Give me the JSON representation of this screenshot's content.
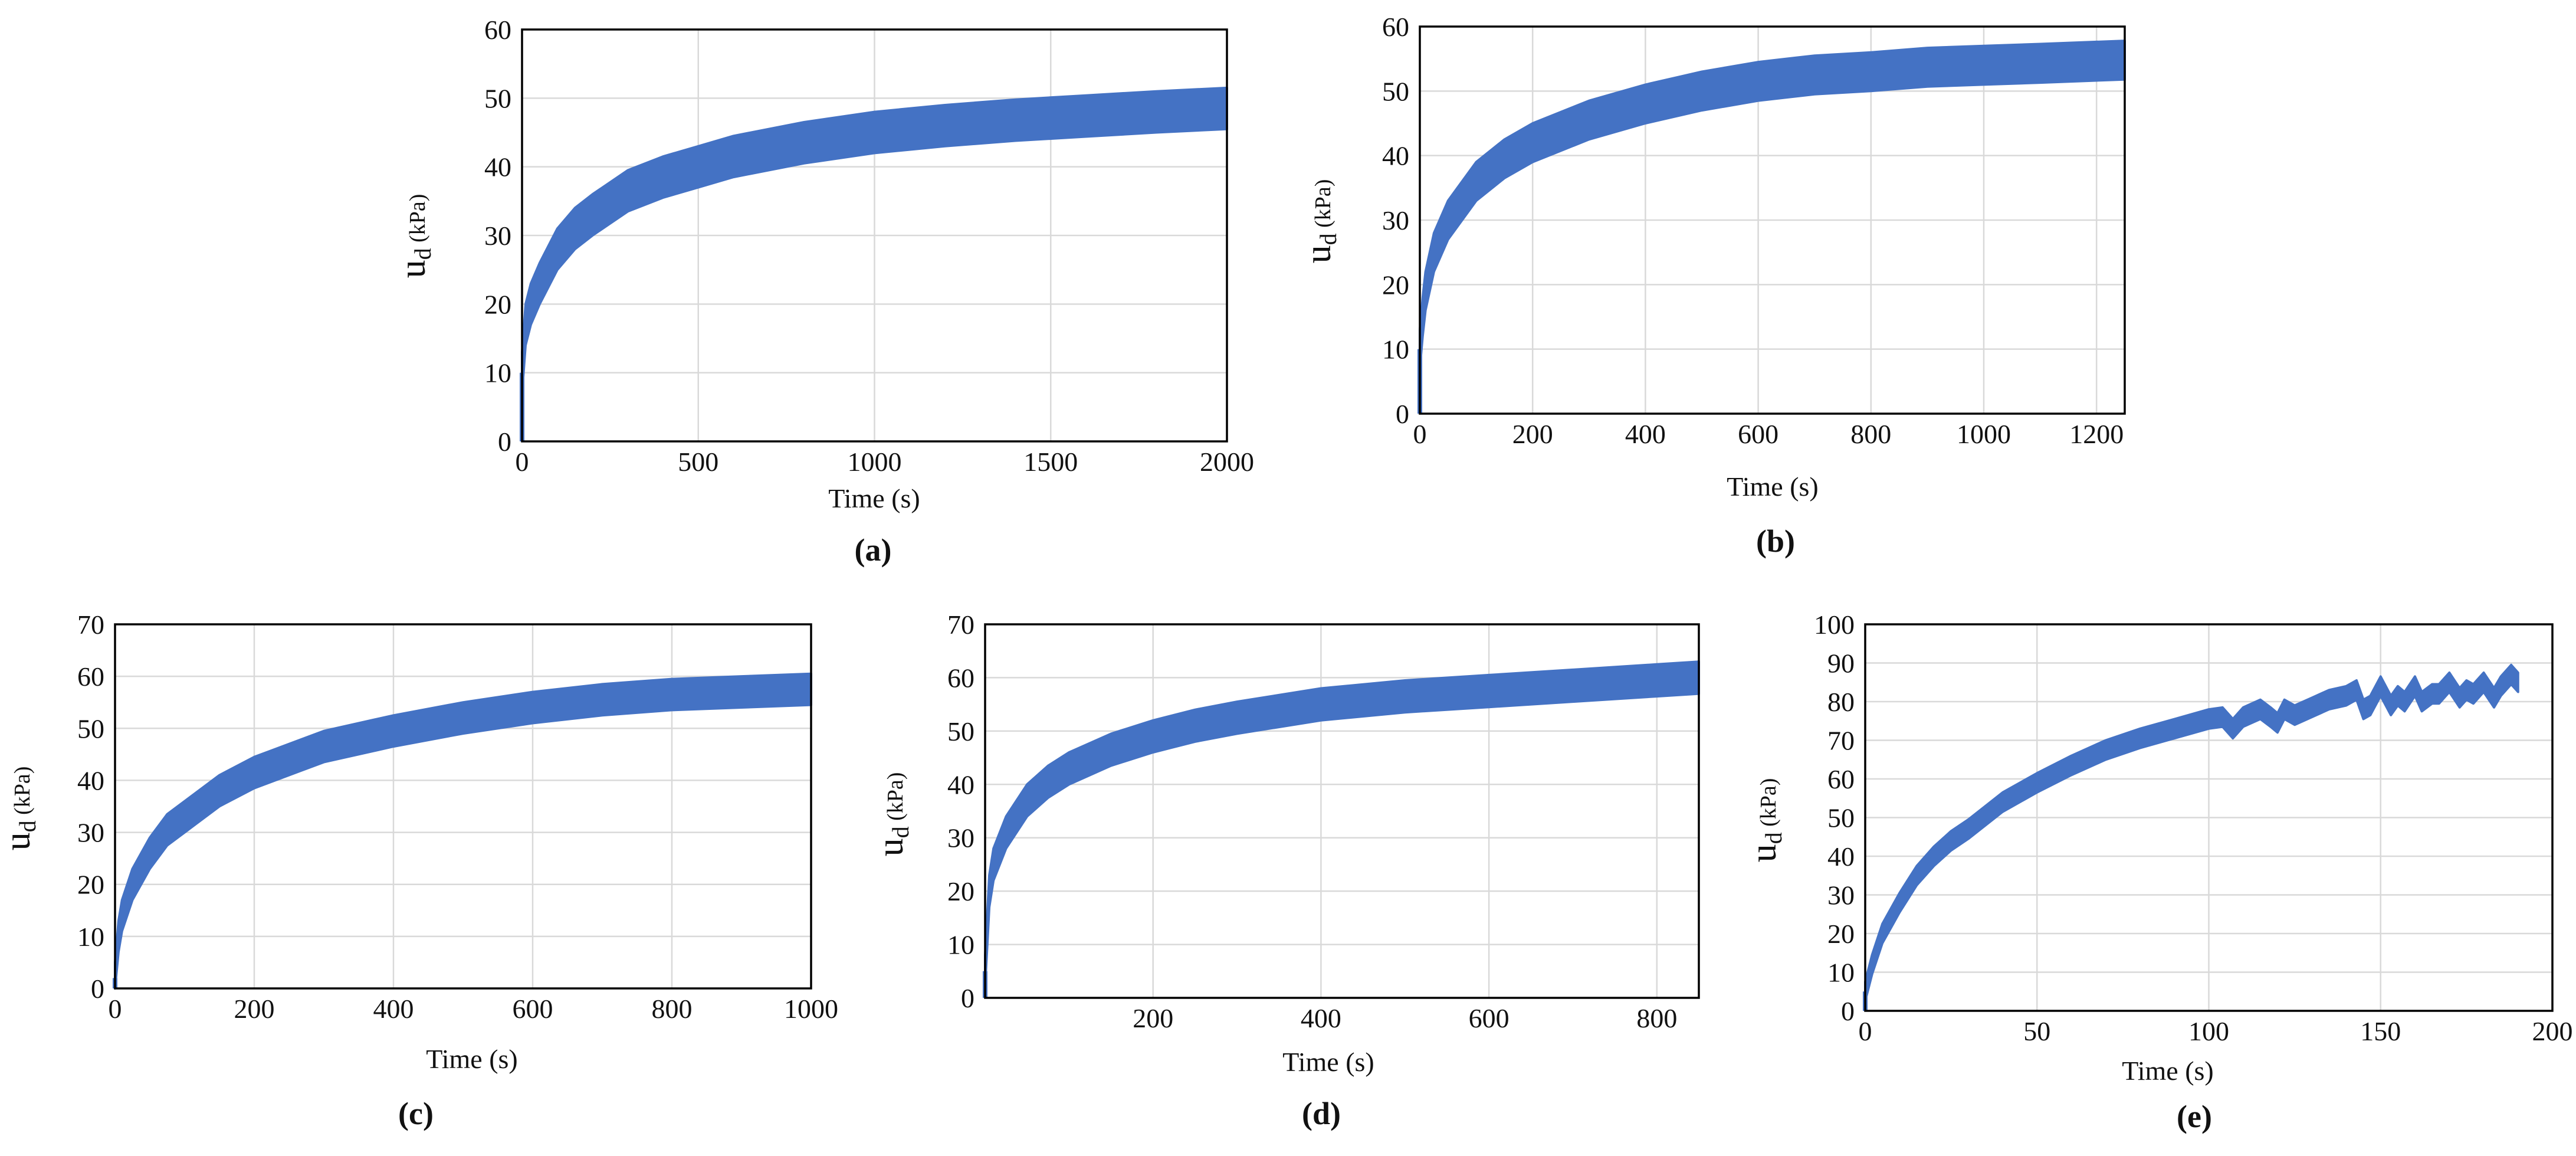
{
  "figure": {
    "line_color": "#4472C4",
    "grid_color": "#d9d9d9",
    "axis_color": "#000000"
  },
  "chart_data": [
    {
      "id": "a",
      "type": "line",
      "caption": "(a)",
      "xlabel": "Time (s)",
      "ylabel": "u",
      "ylabel_sub": "d",
      "ylabel_unit": " (kPa)",
      "xlim": [
        0,
        2000
      ],
      "ylim": [
        0,
        60
      ],
      "xticks": [
        0,
        500,
        1000,
        1500,
        2000
      ],
      "yticks": [
        0,
        10,
        20,
        30,
        40,
        50,
        60
      ],
      "band_width": 3,
      "series": [
        {
          "name": "u_d",
          "x": [
            0,
            10,
            25,
            50,
            100,
            150,
            200,
            300,
            400,
            500,
            600,
            800,
            1000,
            1200,
            1400,
            1600,
            1800,
            2000
          ],
          "y": [
            10,
            17,
            20,
            23,
            28,
            31,
            33,
            36.5,
            38.5,
            40,
            41.5,
            43.5,
            45,
            46,
            46.8,
            47.4,
            48,
            48.5
          ]
        }
      ]
    },
    {
      "id": "b",
      "type": "line",
      "caption": "(b)",
      "xlabel": "Time (s)",
      "ylabel": "u",
      "ylabel_sub": "d",
      "ylabel_unit": " (kPa)",
      "xlim": [
        0,
        1250
      ],
      "ylim": [
        0,
        60
      ],
      "xticks": [
        0,
        200,
        400,
        600,
        800,
        1000,
        1200
      ],
      "yticks": [
        0,
        10,
        20,
        30,
        40,
        50,
        60
      ],
      "band_width": 3,
      "series": [
        {
          "name": "u_d",
          "x": [
            0,
            5,
            10,
            25,
            50,
            100,
            150,
            200,
            300,
            400,
            500,
            600,
            700,
            800,
            900,
            1000,
            1100,
            1250
          ],
          "y": [
            10,
            15,
            19,
            25,
            30,
            36,
            39.5,
            42,
            45.5,
            48,
            50,
            51.5,
            52.5,
            53,
            53.7,
            54,
            54.3,
            54.8
          ]
        }
      ]
    },
    {
      "id": "c",
      "type": "line",
      "caption": "(c)",
      "xlabel": "Time (s)",
      "ylabel": "u",
      "ylabel_sub": "d",
      "ylabel_unit": " (kPa)",
      "xlim": [
        0,
        1000
      ],
      "ylim": [
        0,
        70
      ],
      "xticks": [
        0,
        200,
        400,
        600,
        800,
        1000
      ],
      "yticks": [
        0,
        10,
        20,
        30,
        40,
        50,
        60,
        70
      ],
      "band_width": 3,
      "series": [
        {
          "name": "u_d",
          "x": [
            0,
            5,
            10,
            25,
            50,
            75,
            100,
            150,
            200,
            300,
            400,
            500,
            600,
            700,
            800,
            900,
            1000
          ],
          "y": [
            2,
            10,
            14,
            20,
            26,
            30.5,
            33,
            38,
            41.5,
            46.5,
            49.5,
            52,
            54,
            55.5,
            56.5,
            57,
            57.5
          ]
        }
      ]
    },
    {
      "id": "d",
      "type": "line",
      "caption": "(d)",
      "xlabel": "Time (s)",
      "ylabel": "u",
      "ylabel_sub": "d",
      "ylabel_unit": " (kPa)",
      "xlim": [
        0,
        850
      ],
      "ylim": [
        0,
        70
      ],
      "xticks": [
        200,
        400,
        600,
        800
      ],
      "yticks": [
        0,
        10,
        20,
        30,
        40,
        50,
        60,
        70
      ],
      "band_width": 3,
      "series": [
        {
          "name": "u_d",
          "x": [
            0,
            5,
            10,
            25,
            50,
            75,
            100,
            150,
            200,
            250,
            300,
            400,
            500,
            600,
            700,
            800,
            850
          ],
          "y": [
            5,
            20,
            25,
            31,
            37,
            40.5,
            43,
            46.5,
            49,
            51,
            52.5,
            55,
            56.5,
            57.5,
            58.5,
            59.5,
            60
          ]
        }
      ]
    },
    {
      "id": "e",
      "type": "line",
      "caption": "(e)",
      "xlabel": "Time (s)",
      "ylabel": "u",
      "ylabel_sub": "d",
      "ylabel_unit": " (kPa)",
      "xlim": [
        0,
        200
      ],
      "ylim": [
        0,
        100
      ],
      "xticks": [
        0,
        50,
        100,
        150,
        200
      ],
      "yticks": [
        0,
        10,
        20,
        30,
        40,
        50,
        60,
        70,
        80,
        90,
        100
      ],
      "band_width": 2.5,
      "series": [
        {
          "name": "u_d",
          "x": [
            0,
            2,
            5,
            10,
            15,
            20,
            25,
            30,
            40,
            50,
            60,
            70,
            80,
            90,
            100,
            104,
            107,
            110,
            115,
            118,
            120,
            122,
            125,
            130,
            135,
            140,
            143,
            145,
            147,
            150,
            153,
            155,
            157,
            160,
            162,
            165,
            167,
            170,
            173,
            175,
            177,
            180,
            183,
            185,
            188,
            190
          ],
          "y": [
            5,
            12,
            20,
            28,
            35,
            40,
            44,
            47,
            54,
            59,
            63.5,
            67.5,
            70.5,
            73,
            75.5,
            76,
            73,
            76,
            78,
            76,
            74.5,
            78,
            76.5,
            78.5,
            80.5,
            81.5,
            83,
            78,
            79,
            84,
            79,
            81.5,
            80,
            84,
            80,
            82,
            82,
            85,
            81,
            83,
            82,
            85,
            81,
            84,
            87,
            85
          ]
        }
      ]
    }
  ]
}
